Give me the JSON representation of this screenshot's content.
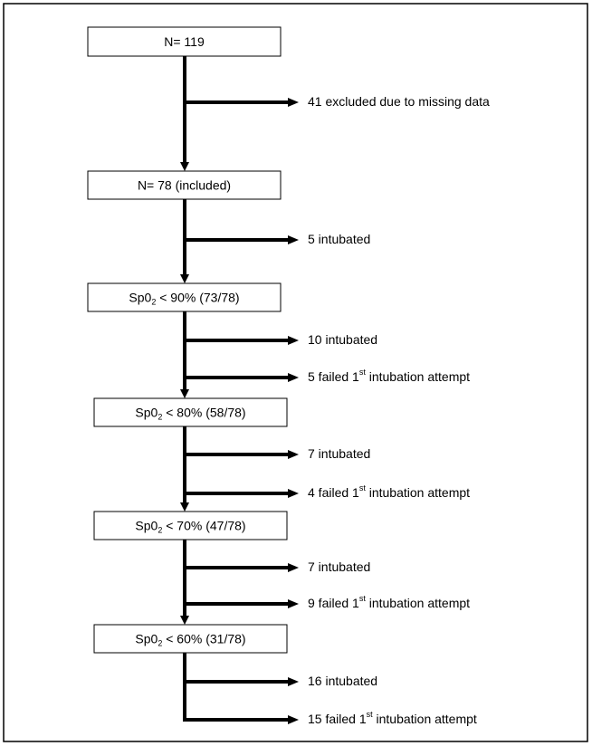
{
  "nodes": [
    {
      "label": [
        "N= 119"
      ],
      "exits": [
        [
          "41 excluded due to missing data"
        ]
      ]
    },
    {
      "label": [
        "N= 78 (included)"
      ],
      "exits": [
        [
          "5 intubated"
        ]
      ]
    },
    {
      "label": [
        "Sp0",
        "2",
        " < 90% (73/78)"
      ],
      "exits": [
        [
          "10 intubated"
        ],
        [
          "5 failed 1",
          "st",
          " intubation attempt"
        ]
      ]
    },
    {
      "label": [
        "Sp0",
        "2",
        " < 80% (58/78)"
      ],
      "exits": [
        [
          "7 intubated"
        ],
        [
          "4 failed 1",
          "st",
          " intubation attempt"
        ]
      ]
    },
    {
      "label": [
        "Sp0",
        "2",
        " < 70% (47/78)"
      ],
      "exits": [
        [
          "7 intubated"
        ],
        [
          "9 failed 1",
          "st",
          " intubation attempt"
        ]
      ]
    },
    {
      "label": [
        "Sp0",
        "2",
        " < 60% (31/78)"
      ],
      "exits": [
        [
          "16 intubated"
        ],
        [
          "15 failed 1",
          "st",
          " intubation attempt"
        ]
      ]
    }
  ]
}
